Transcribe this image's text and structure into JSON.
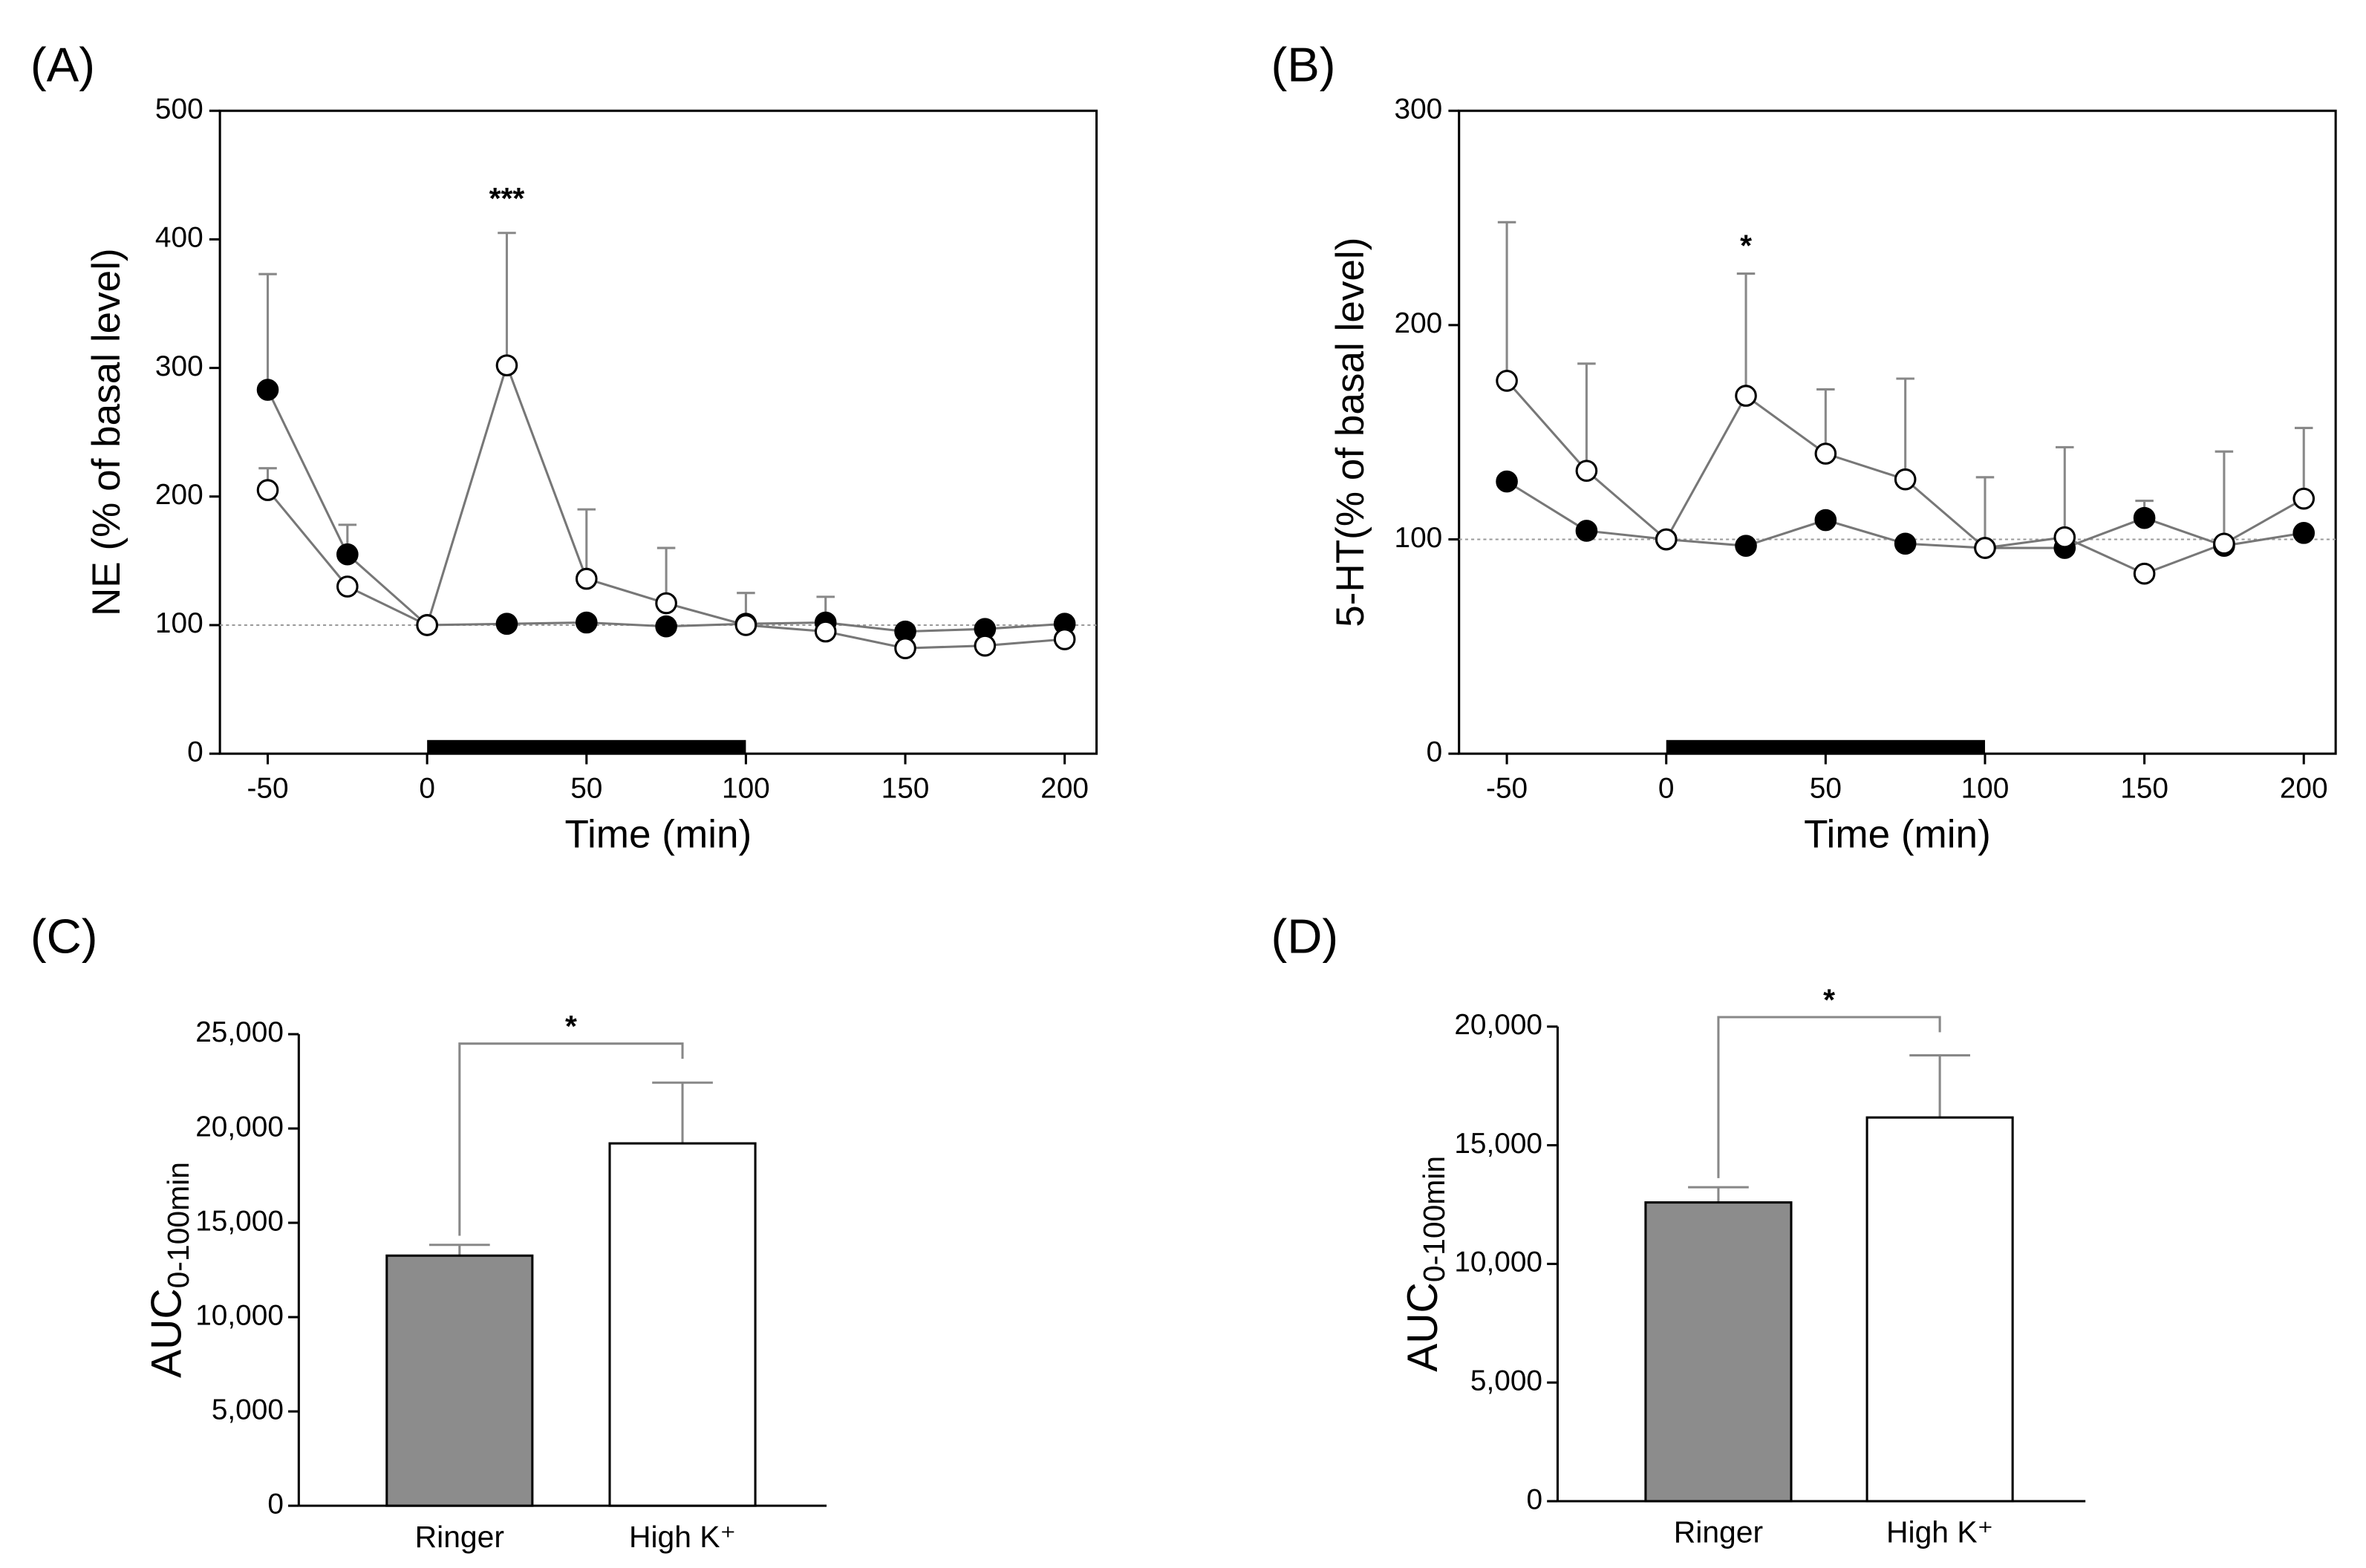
{
  "chart_data": [
    {
      "type": "line",
      "panel": "(A)",
      "ylabel": "NE (% of basal level)",
      "xlabel": "Time (min)",
      "x": [
        -50,
        -25,
        0,
        25,
        50,
        75,
        100,
        125,
        150,
        175,
        200
      ],
      "series": [
        {
          "color": "#000000",
          "values": [
            283,
            155,
            100,
            101,
            102,
            99,
            101,
            102,
            95,
            97,
            101
          ],
          "errors": [
            90,
            23,
            0,
            0,
            0,
            0,
            0,
            0,
            0,
            0,
            0
          ]
        },
        {
          "color": "#ffffff",
          "values": [
            205,
            130,
            100,
            302,
            136,
            117,
            100,
            95,
            82,
            84,
            89
          ],
          "errors": [
            17,
            0,
            0,
            103,
            54,
            43,
            25,
            27,
            0,
            0,
            0
          ]
        }
      ],
      "xlim": [
        -65,
        210
      ],
      "xticks": [
        -50,
        0,
        50,
        100,
        150,
        200
      ],
      "ylim": [
        0,
        500
      ],
      "yticks": [
        0,
        100,
        200,
        300,
        400,
        500
      ],
      "reference_line": 100,
      "bar_interval": [
        0,
        100
      ],
      "annotations": [
        {
          "text": "***",
          "x": 25,
          "y": 430
        }
      ]
    },
    {
      "type": "line",
      "panel": "(B)",
      "ylabel": "5-HT(% of basal level)",
      "xlabel": "Time (min)",
      "x": [
        -50,
        -25,
        0,
        25,
        50,
        75,
        100,
        125,
        150,
        175,
        200
      ],
      "series": [
        {
          "color": "#000000",
          "values": [
            127,
            104,
            100,
            97,
            109,
            98,
            96,
            96,
            110,
            97,
            103
          ],
          "errors": [
            0,
            0,
            0,
            0,
            0,
            0,
            0,
            0,
            8,
            0,
            0
          ]
        },
        {
          "color": "#ffffff",
          "values": [
            174,
            132,
            100,
            167,
            140,
            128,
            96,
            101,
            84,
            98,
            119
          ],
          "errors": [
            74,
            50,
            0,
            57,
            30,
            47,
            33,
            42,
            0,
            43,
            33
          ]
        }
      ],
      "xlim": [
        -65,
        210
      ],
      "xticks": [
        -50,
        0,
        50,
        100,
        150,
        200
      ],
      "ylim": [
        0,
        300
      ],
      "yticks": [
        0,
        100,
        200,
        300
      ],
      "reference_line": 100,
      "bar_interval": [
        0,
        100
      ],
      "annotations": [
        {
          "text": "*",
          "x": 25,
          "y": 236
        }
      ]
    },
    {
      "type": "bar",
      "panel": "(C)",
      "ylabel": "AUC",
      "ylabel_sub": "0-100min",
      "categories": [
        "Ringer",
        "High K⁺"
      ],
      "values": [
        13260,
        19210
      ],
      "errors": [
        570,
        3220
      ],
      "colors": [
        "#8c8c8c",
        "#ffffff"
      ],
      "ylim": [
        0,
        25000
      ],
      "yticks": [
        0,
        {
          "value": 5000,
          "label": "5,000"
        },
        {
          "value": 10000,
          "label": "10,000"
        },
        {
          "value": 15000,
          "label": "15,000"
        },
        {
          "value": 20000,
          "label": "20,000"
        },
        {
          "value": 25000,
          "label": "25,000"
        }
      ],
      "bracket": {
        "y": 24500,
        "label": "*"
      }
    },
    {
      "type": "bar",
      "panel": "(D)",
      "ylabel": "AUC",
      "ylabel_sub": "0-100min",
      "categories": [
        "Ringer",
        "High K⁺"
      ],
      "values": [
        12590,
        16170
      ],
      "errors": [
        640,
        2620
      ],
      "colors": [
        "#8c8c8c",
        "#ffffff"
      ],
      "ylim": [
        0,
        20000
      ],
      "yticks": [
        0,
        {
          "value": 5000,
          "label": "5,000"
        },
        {
          "value": 10000,
          "label": "10,000"
        },
        {
          "value": 15000,
          "label": "15,000"
        },
        {
          "value": 20000,
          "label": "20,000"
        }
      ],
      "bracket": {
        "y": 20400,
        "label": "*"
      }
    }
  ]
}
